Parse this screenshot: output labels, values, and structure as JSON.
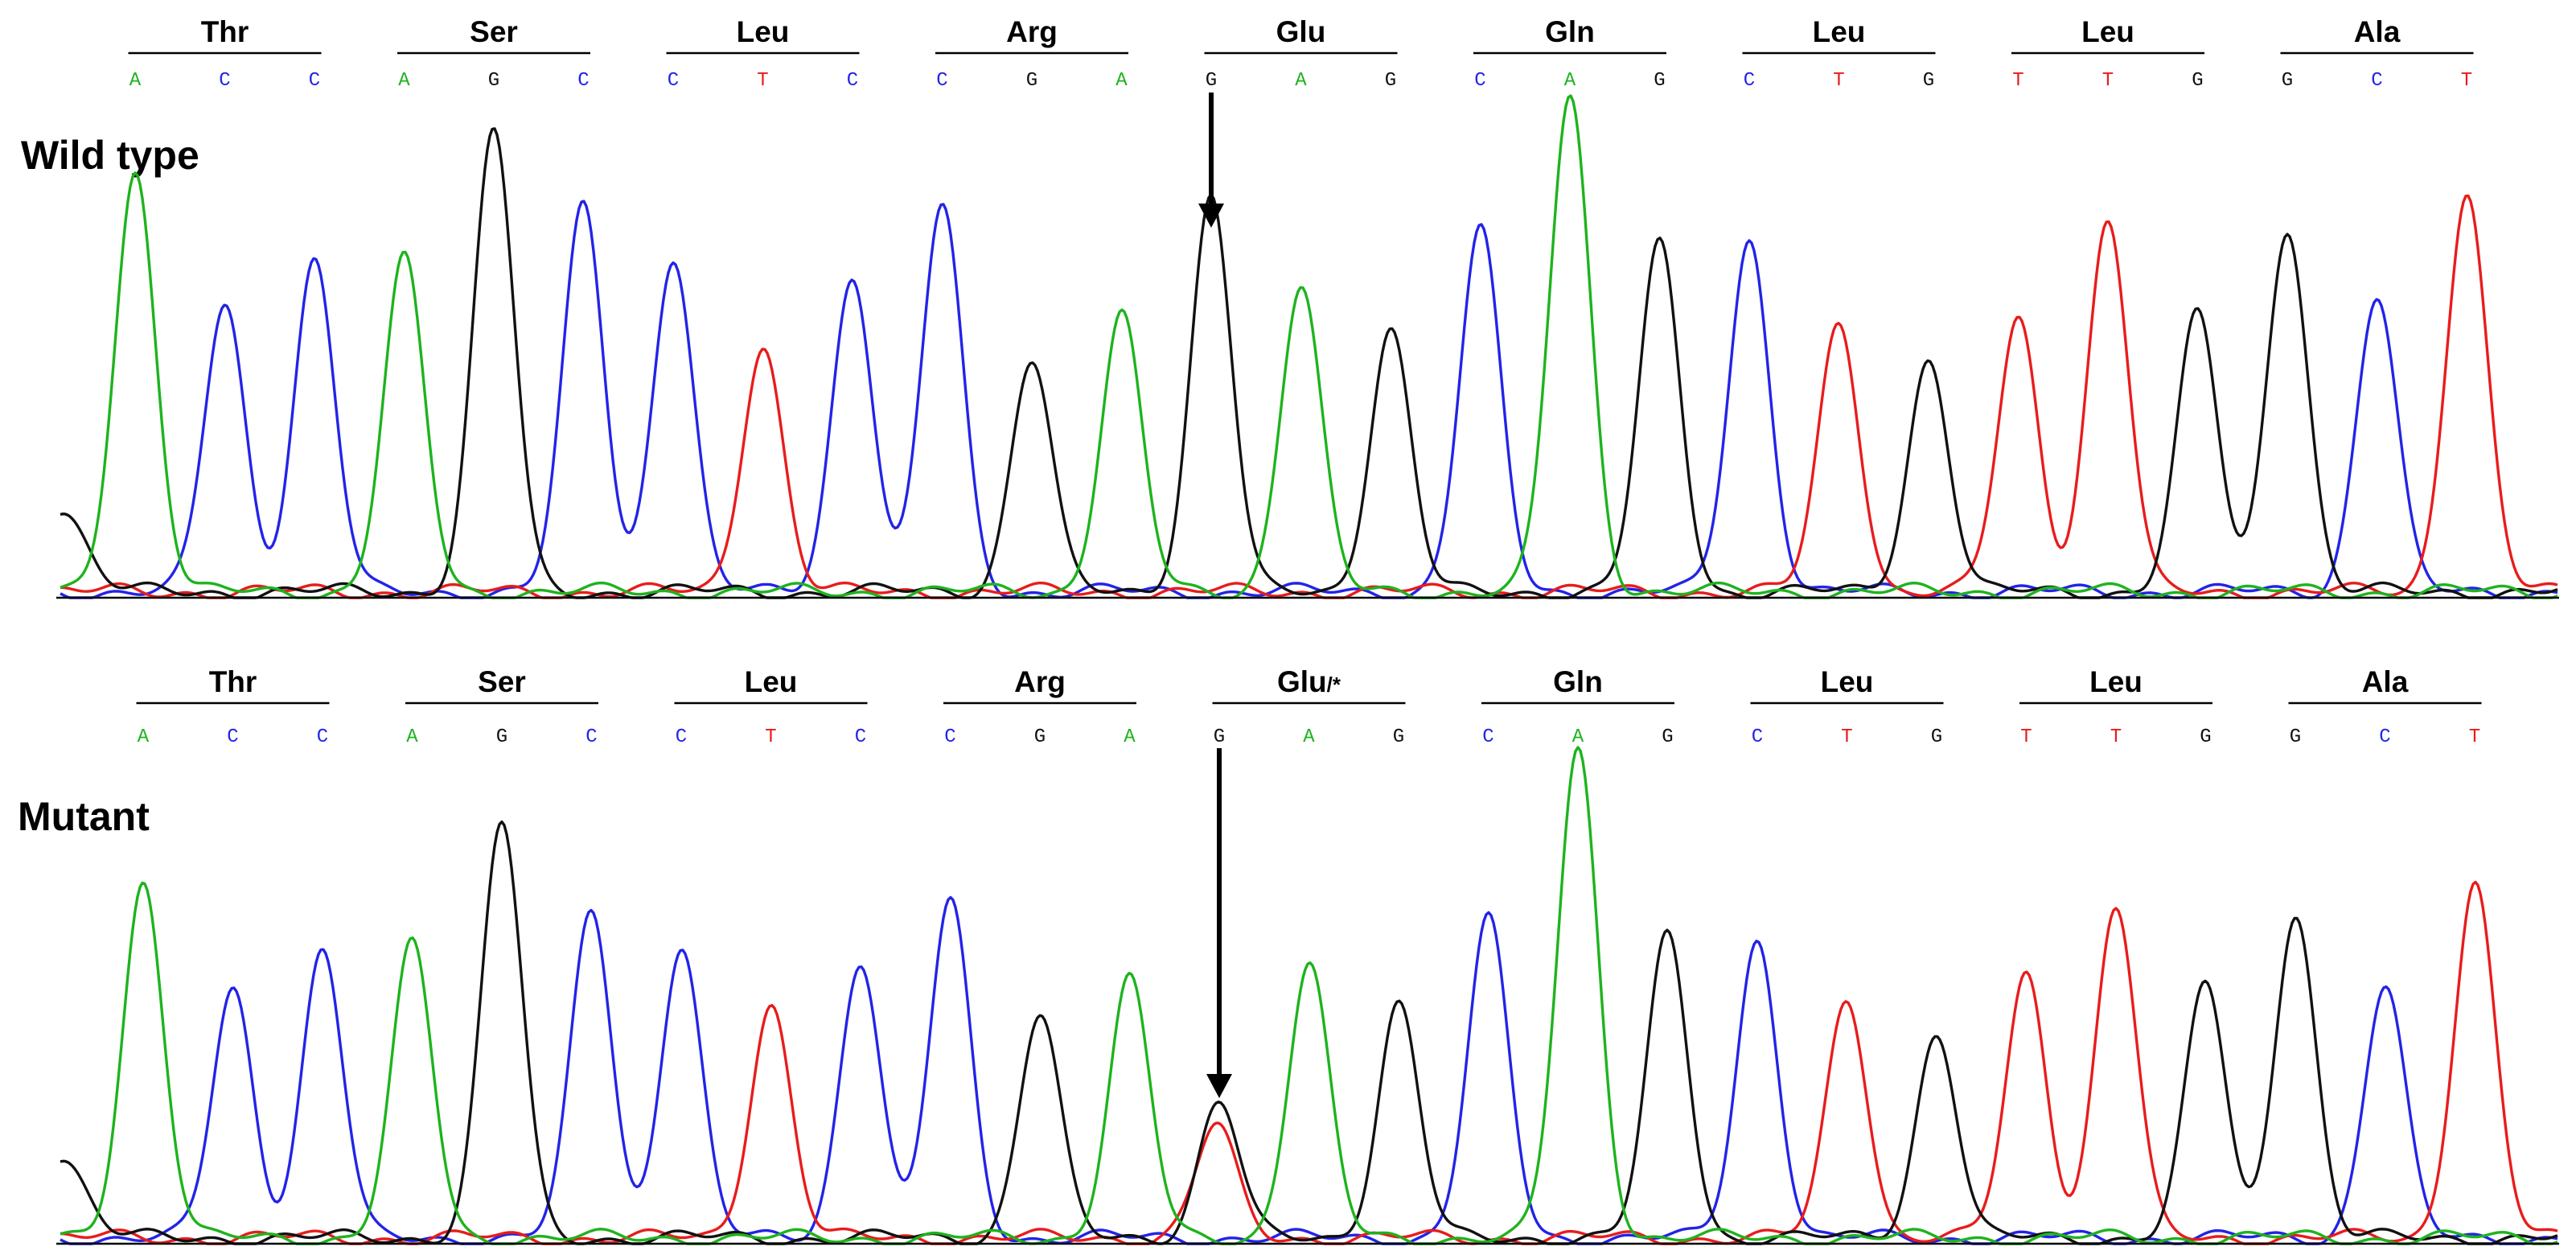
{
  "colors": {
    "A": "#1eb31e",
    "C": "#2323e8",
    "G": "#111111",
    "T": "#e81c1c"
  },
  "panels": [
    {
      "id": "wild",
      "label": "Wild type",
      "codons": [
        {
          "aa": "Thr",
          "bases": [
            "A",
            "C",
            "C"
          ]
        },
        {
          "aa": "Ser",
          "bases": [
            "A",
            "G",
            "C"
          ]
        },
        {
          "aa": "Leu",
          "bases": [
            "C",
            "T",
            "C"
          ]
        },
        {
          "aa": "Arg",
          "bases": [
            "C",
            "G",
            "A"
          ]
        },
        {
          "aa": "Glu",
          "bases": [
            "G",
            "A",
            "G"
          ]
        },
        {
          "aa": "Gln",
          "bases": [
            "C",
            "A",
            "G"
          ]
        },
        {
          "aa": "Leu",
          "bases": [
            "C",
            "T",
            "G"
          ]
        },
        {
          "aa": "Leu",
          "bases": [
            "T",
            "T",
            "G"
          ]
        },
        {
          "aa": "Ala",
          "bases": [
            "G",
            "C",
            "T"
          ]
        }
      ],
      "peaks": [
        [
          "A",
          0.85
        ],
        [
          "C",
          0.58
        ],
        [
          "C",
          0.67
        ],
        [
          "A",
          0.67
        ],
        [
          "G",
          0.93
        ],
        [
          "C",
          0.78
        ],
        [
          "C",
          0.68
        ],
        [
          "T",
          0.5
        ],
        [
          "C",
          0.64
        ],
        [
          "C",
          0.78
        ],
        [
          "G",
          0.47
        ],
        [
          "A",
          0.56
        ],
        [
          "G",
          0.8
        ],
        [
          "A",
          0.62
        ],
        [
          "G",
          0.53
        ],
        [
          "C",
          0.73
        ],
        [
          "A",
          1.0
        ],
        [
          "G",
          0.7
        ],
        [
          "C",
          0.71
        ],
        [
          "T",
          0.54
        ],
        [
          "G",
          0.47
        ],
        [
          "T",
          0.55
        ],
        [
          "T",
          0.75
        ],
        [
          "G",
          0.56
        ],
        [
          "G",
          0.74
        ],
        [
          "C",
          0.6
        ],
        [
          "T",
          0.81
        ]
      ],
      "arrow_base_index": 12
    },
    {
      "id": "mutant",
      "label": "Mutant",
      "codons": [
        {
          "aa": "Thr",
          "bases": [
            "A",
            "C",
            "C"
          ]
        },
        {
          "aa": "Ser",
          "bases": [
            "A",
            "G",
            "C"
          ]
        },
        {
          "aa": "Leu",
          "bases": [
            "C",
            "T",
            "C"
          ]
        },
        {
          "aa": "Arg",
          "bases": [
            "C",
            "G",
            "A"
          ]
        },
        {
          "aa": "Glu",
          "suffix": "/*",
          "bases": [
            "G",
            "A",
            "G"
          ]
        },
        {
          "aa": "Gln",
          "bases": [
            "C",
            "A",
            "G"
          ]
        },
        {
          "aa": "Leu",
          "bases": [
            "C",
            "T",
            "G"
          ]
        },
        {
          "aa": "Leu",
          "bases": [
            "T",
            "T",
            "G"
          ]
        },
        {
          "aa": "Ala",
          "bases": [
            "G",
            "C",
            "T"
          ]
        }
      ],
      "peaks": [
        [
          "A",
          0.73
        ],
        [
          "C",
          0.51
        ],
        [
          "C",
          0.59
        ],
        [
          "A",
          0.6
        ],
        [
          "G",
          0.85
        ],
        [
          "C",
          0.67
        ],
        [
          "C",
          0.6
        ],
        [
          "T",
          0.48
        ],
        [
          "C",
          0.57
        ],
        [
          "C",
          0.69
        ],
        [
          "G",
          0.46
        ],
        [
          "A",
          0.53
        ],
        [
          "G",
          0.28
        ],
        [
          "A",
          0.56
        ],
        [
          "G",
          0.48
        ],
        [
          "C",
          0.65
        ],
        [
          "A",
          1.0
        ],
        [
          "G",
          0.62
        ],
        [
          "C",
          0.61
        ],
        [
          "T",
          0.49
        ],
        [
          "G",
          0.42
        ],
        [
          "T",
          0.54
        ],
        [
          "T",
          0.68
        ],
        [
          "G",
          0.52
        ],
        [
          "G",
          0.67
        ],
        [
          "C",
          0.52
        ],
        [
          "T",
          0.73
        ]
      ],
      "double_peak": {
        "index": 12,
        "base": "T",
        "height": 0.23
      },
      "arrow_base_index": 12
    }
  ]
}
